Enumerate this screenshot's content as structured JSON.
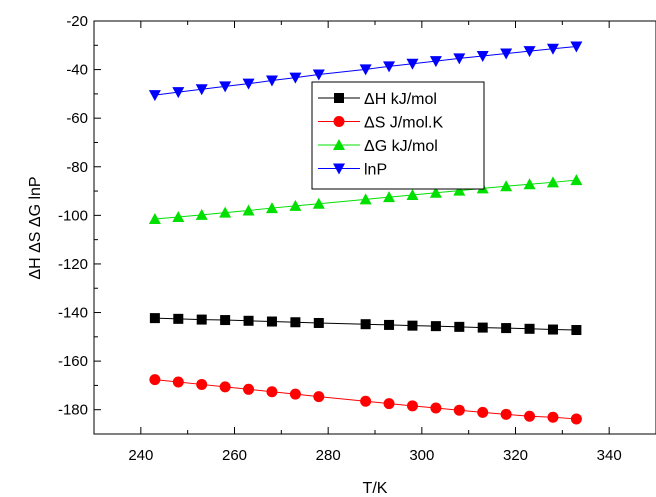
{
  "chart_data": {
    "type": "line",
    "xlabel": "T/K",
    "ylabel": "ΔH ΔS ΔG lnP",
    "xlim": [
      230,
      350
    ],
    "ylim": [
      -190,
      -20
    ],
    "x_ticks": [
      240,
      260,
      280,
      300,
      320,
      340
    ],
    "x_tick_labels": [
      "240",
      "260",
      "280",
      "300",
      "320",
      "340"
    ],
    "y_ticks": [
      -180,
      -160,
      -140,
      -120,
      -100,
      -80,
      -60,
      -40,
      -20
    ],
    "y_tick_labels": [
      "-180",
      "-160",
      "-140",
      "-120",
      "-100",
      "-80",
      "-60",
      "-40",
      "-20"
    ],
    "x": [
      243,
      248,
      253,
      258,
      263,
      268,
      273,
      278,
      288,
      293,
      298,
      303,
      308,
      313,
      318,
      323,
      328,
      333
    ],
    "grid": false,
    "legend_position": "top-center",
    "series": [
      {
        "name": "ΔH kJ/mol",
        "color": "#000000",
        "marker": "square",
        "values": [
          -142.3,
          -142.6,
          -142.9,
          -143.1,
          -143.4,
          -143.7,
          -144.0,
          -144.3,
          -144.8,
          -145.1,
          -145.4,
          -145.6,
          -145.9,
          -146.2,
          -146.4,
          -146.7,
          -147.0,
          -147.2
        ]
      },
      {
        "name": "ΔS J/mol.K",
        "color": "#ff0000",
        "marker": "circle",
        "values": [
          -167.6,
          -168.6,
          -169.6,
          -170.6,
          -171.6,
          -172.6,
          -173.6,
          -174.6,
          -176.5,
          -177.5,
          -178.4,
          -179.3,
          -180.2,
          -181.1,
          -181.9,
          -182.7,
          -183.1,
          -183.8
        ]
      },
      {
        "name": "ΔG kJ/mol",
        "color": "#00e000",
        "marker": "triangle-up",
        "values": [
          -101.5,
          -100.7,
          -99.8,
          -98.9,
          -98.0,
          -97.0,
          -96.1,
          -95.2,
          -93.4,
          -92.5,
          -91.6,
          -90.7,
          -89.8,
          -88.9,
          -88.0,
          -87.2,
          -86.4,
          -85.5
        ]
      },
      {
        "name": "lnP",
        "color": "#0000ff",
        "marker": "triangle-down",
        "values": [
          -50.5,
          -49.3,
          -48.1,
          -46.9,
          -45.8,
          -44.5,
          -43.3,
          -42.0,
          -39.9,
          -38.7,
          -37.6,
          -36.5,
          -35.4,
          -34.4,
          -33.4,
          -32.4,
          -31.4,
          -30.5
        ]
      }
    ]
  }
}
